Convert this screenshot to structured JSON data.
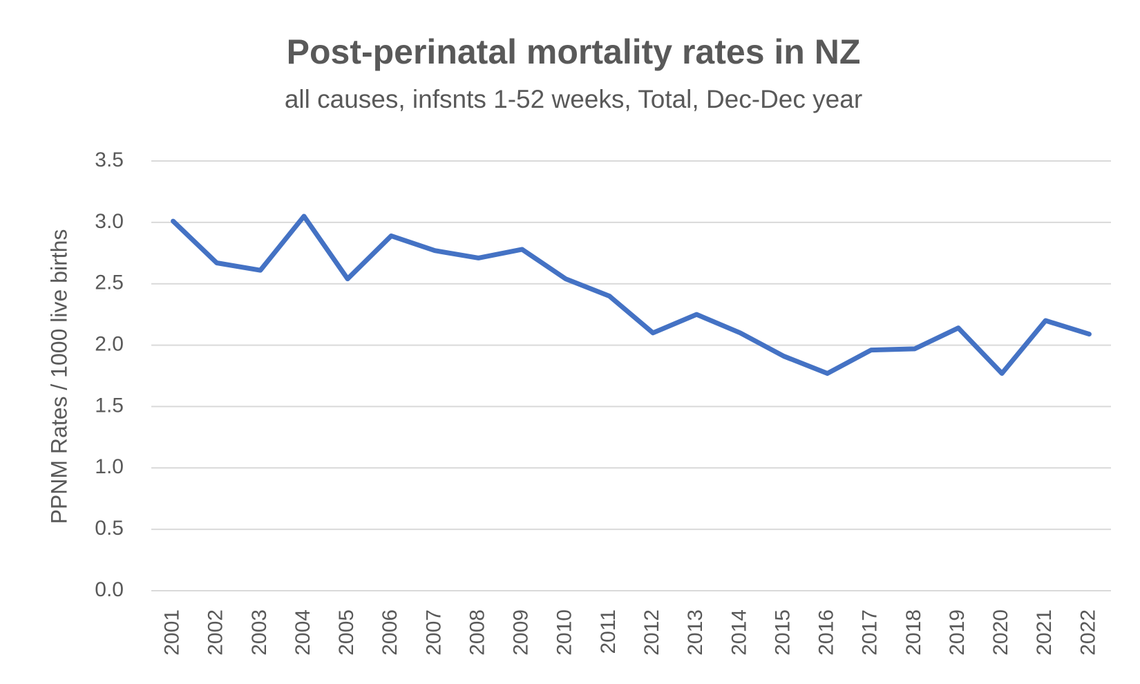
{
  "chart_data": {
    "type": "line",
    "title": "Post-perinatal mortality rates in NZ",
    "subtitle": "all causes, infsnts 1-52 weeks, Total, Dec-Dec year",
    "y_label": "PPNM Rates / 1000 live births",
    "categories": [
      "2001",
      "2002",
      "2003",
      "2004",
      "2005",
      "2006",
      "2007",
      "2008",
      "2009",
      "2010",
      "2011",
      "2012",
      "2013",
      "2014",
      "2015",
      "2016",
      "2017",
      "2018",
      "2019",
      "2020",
      "2021",
      "2022"
    ],
    "series": [
      {
        "color": "#4472c4",
        "values": [
          3.01,
          2.67,
          2.61,
          3.05,
          2.54,
          2.89,
          2.77,
          2.71,
          2.78,
          2.54,
          2.4,
          2.1,
          2.25,
          2.1,
          1.91,
          1.77,
          1.96,
          1.97,
          2.14,
          1.77,
          2.2,
          2.09
        ]
      }
    ],
    "ylim": [
      0,
      3.5
    ],
    "yticks": [
      {
        "value": 0,
        "label": "0.0"
      },
      0.5,
      {
        "value": 1,
        "label": "1.0"
      },
      1.5,
      {
        "value": 2,
        "label": "2.0"
      },
      2.5,
      {
        "value": 3,
        "label": "3.0"
      },
      3.5
    ],
    "grid": true
  }
}
